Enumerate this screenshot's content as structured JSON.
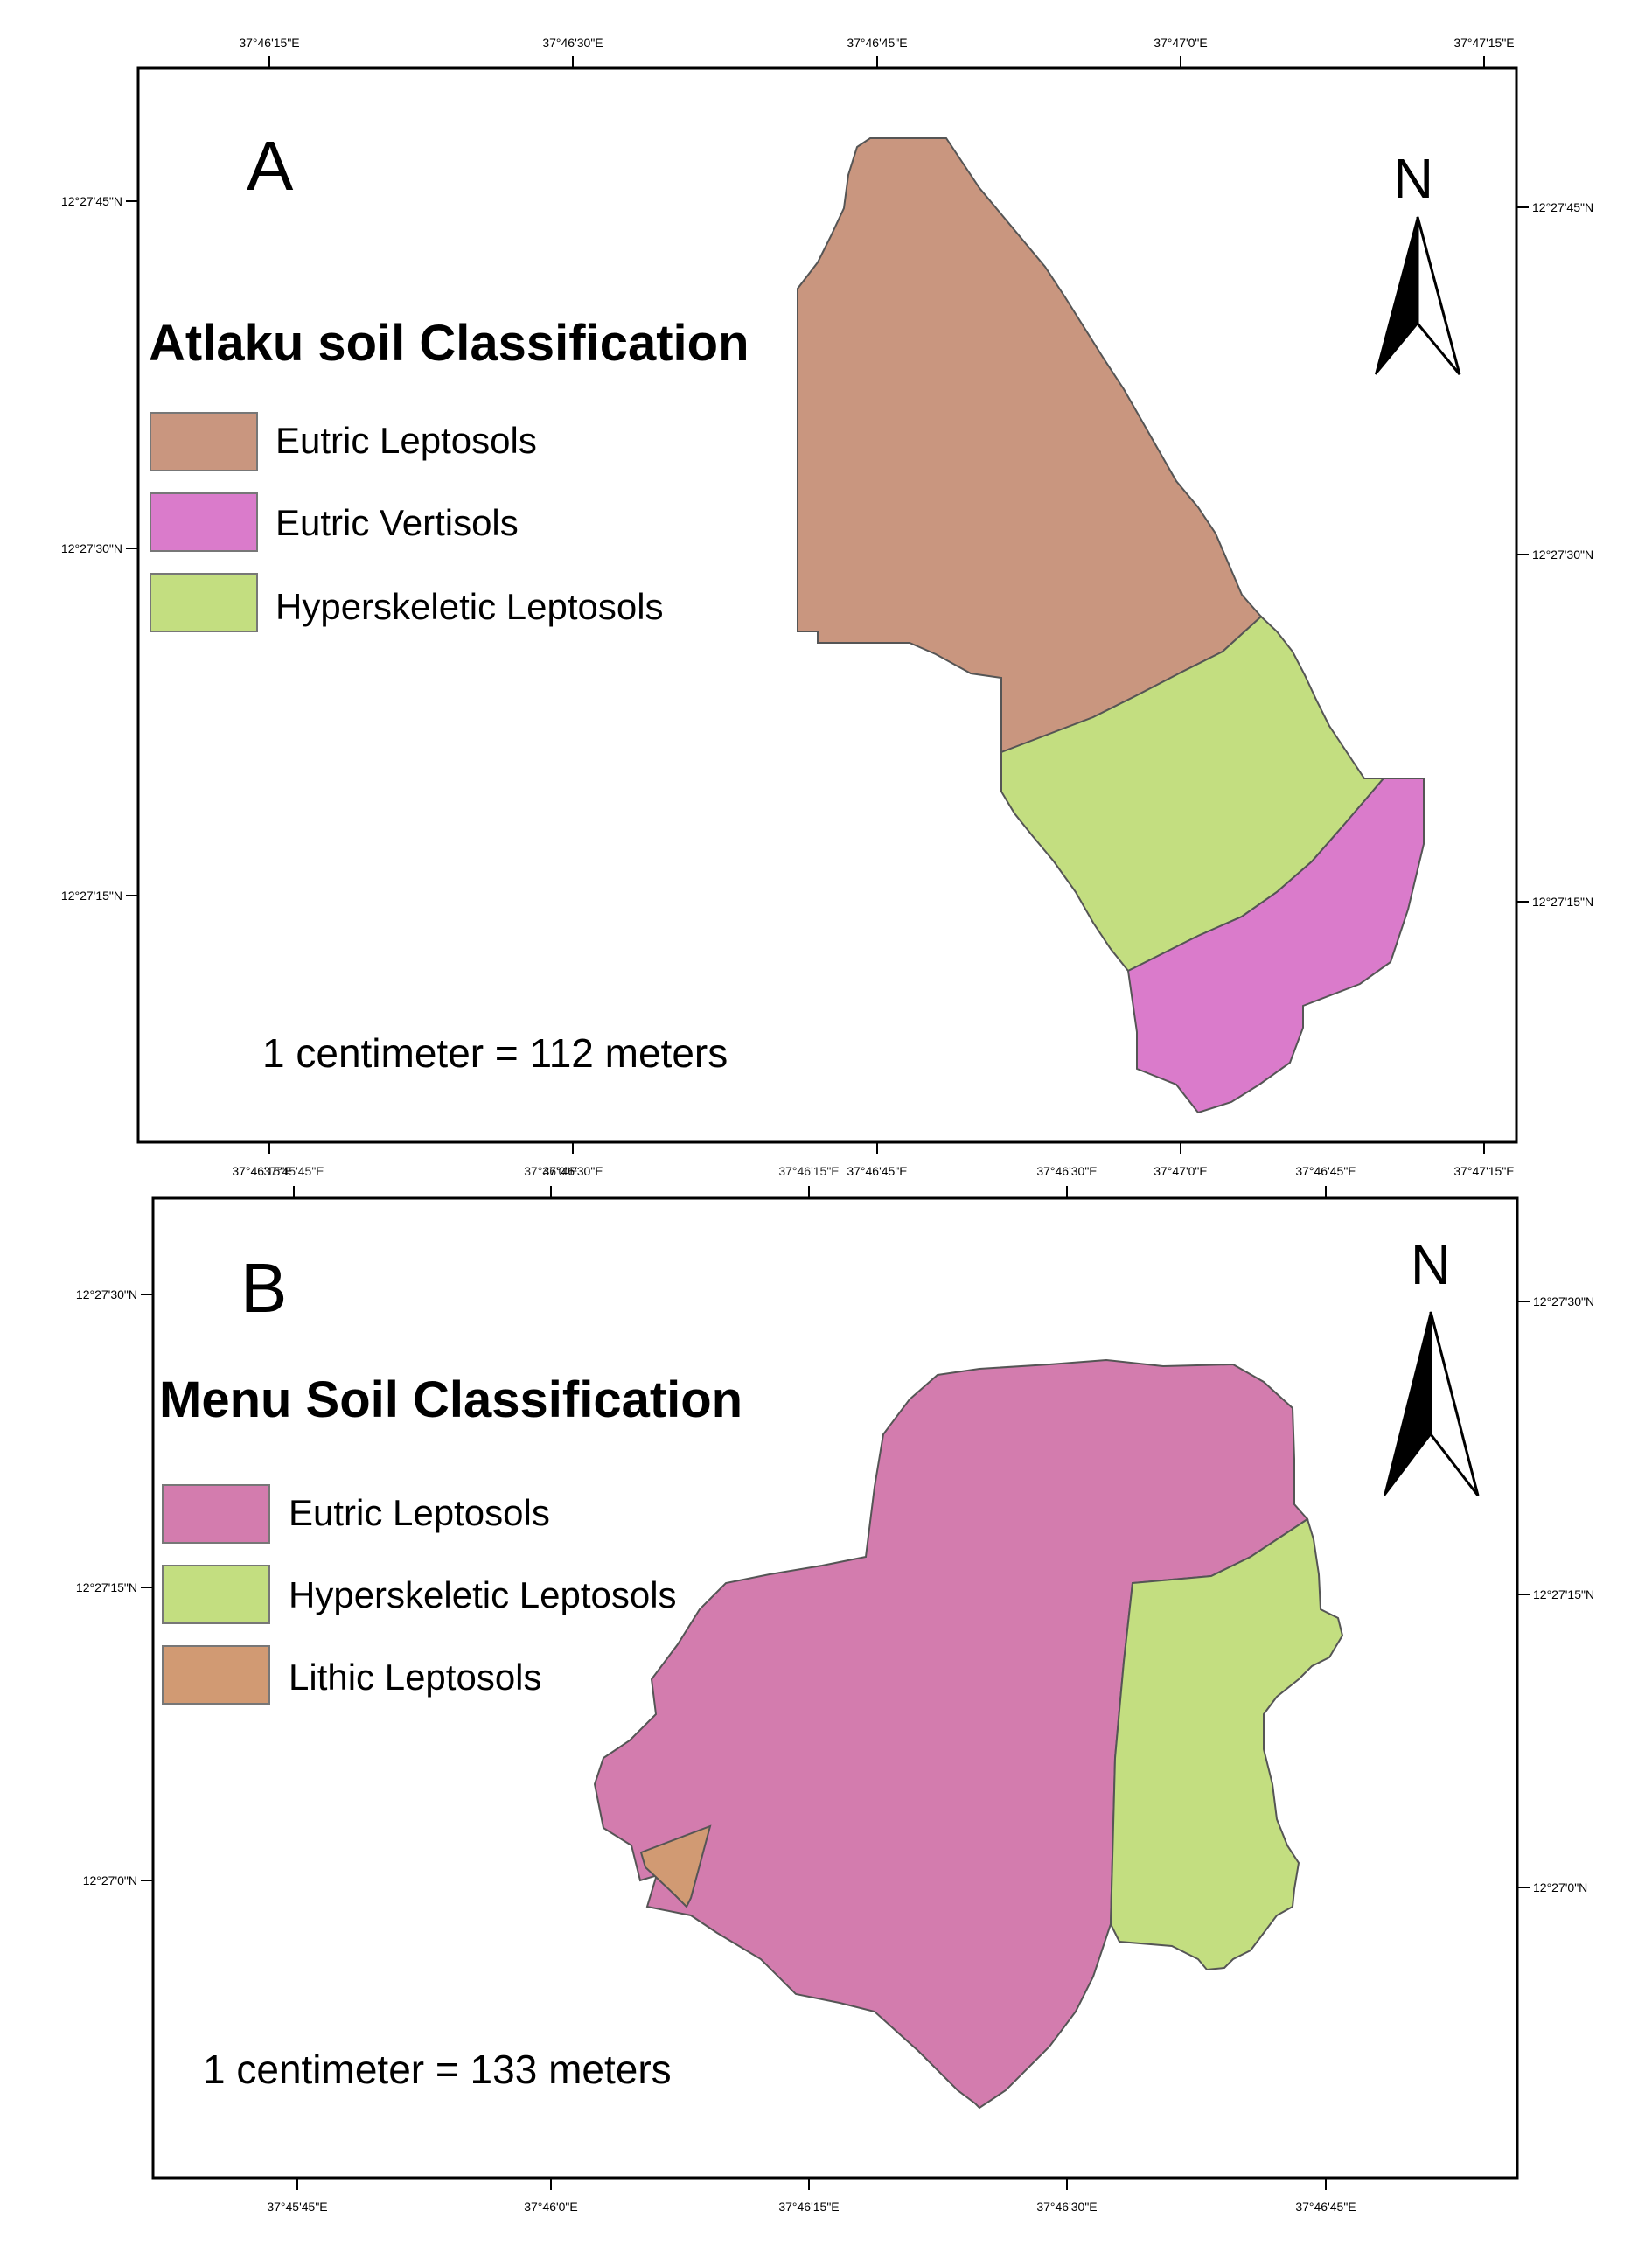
{
  "colors": {
    "eutric_leptosols_a": "#C9967F",
    "eutric_vertisols_a": "#DA7BCB",
    "hyperskeletic_leptosols": "#C3DE80",
    "eutric_leptosols_b": "#D37CAE",
    "lithic_leptosols": "#D19A73",
    "outline": "#555555"
  },
  "map_a": {
    "panel_letter": "A",
    "north_label": "N",
    "legend_title": "Atlaku soil Classification",
    "legend_items": [
      {
        "label": "Eutric Leptosols",
        "color": "#C9967F"
      },
      {
        "label": "Eutric Vertisols",
        "color": "#DA7BCB"
      },
      {
        "label": "Hyperskeletic Leptosols",
        "color": "#C3DE80"
      }
    ],
    "scale_text": "1 centimeter = 112 meters",
    "top_ticks": [
      "37°46'15\"E",
      "37°46'30\"E",
      "37°46'45\"E",
      "37°47'0\"E",
      "37°47'15\"E"
    ],
    "bottom_ticks": [
      "37°46'15\"E",
      "37°46'30\"E",
      "37°46'45\"E",
      "37°47'0\"E",
      "37°47'15\"E"
    ],
    "left_ticks": [
      "12°27'45\"N",
      "12°27'30\"N",
      "12°27'15\"N"
    ],
    "right_ticks": [
      "12°27'45\"N",
      "12°27'30\"N",
      "12°27'15\"N"
    ]
  },
  "map_b": {
    "panel_letter": "B",
    "north_label": "N",
    "legend_title": "Menu Soil Classification",
    "legend_items": [
      {
        "label": "Eutric Leptosols",
        "color": "#D37CAE"
      },
      {
        "label": "Hyperskeletic Leptosols",
        "color": "#C3DE80"
      },
      {
        "label": "Lithic Leptosols",
        "color": "#D19A73"
      }
    ],
    "scale_text": "1 centimeter = 133 meters",
    "top_ticks": [
      "37°45'45\"E",
      "37°46'0\"E",
      "37°46'15\"E",
      "37°46'30\"E",
      "37°46'45\"E"
    ],
    "bottom_ticks": [
      "37°45'45\"E",
      "37°46'0\"E",
      "37°46'15\"E",
      "37°46'30\"E",
      "37°46'45\"E"
    ],
    "left_ticks": [
      "12°27'30\"N",
      "12°27'15\"N",
      "12°27'0\"N"
    ],
    "right_ticks": [
      "12°27'30\"N",
      "12°27'15\"N",
      "12°27'0\"N"
    ]
  }
}
